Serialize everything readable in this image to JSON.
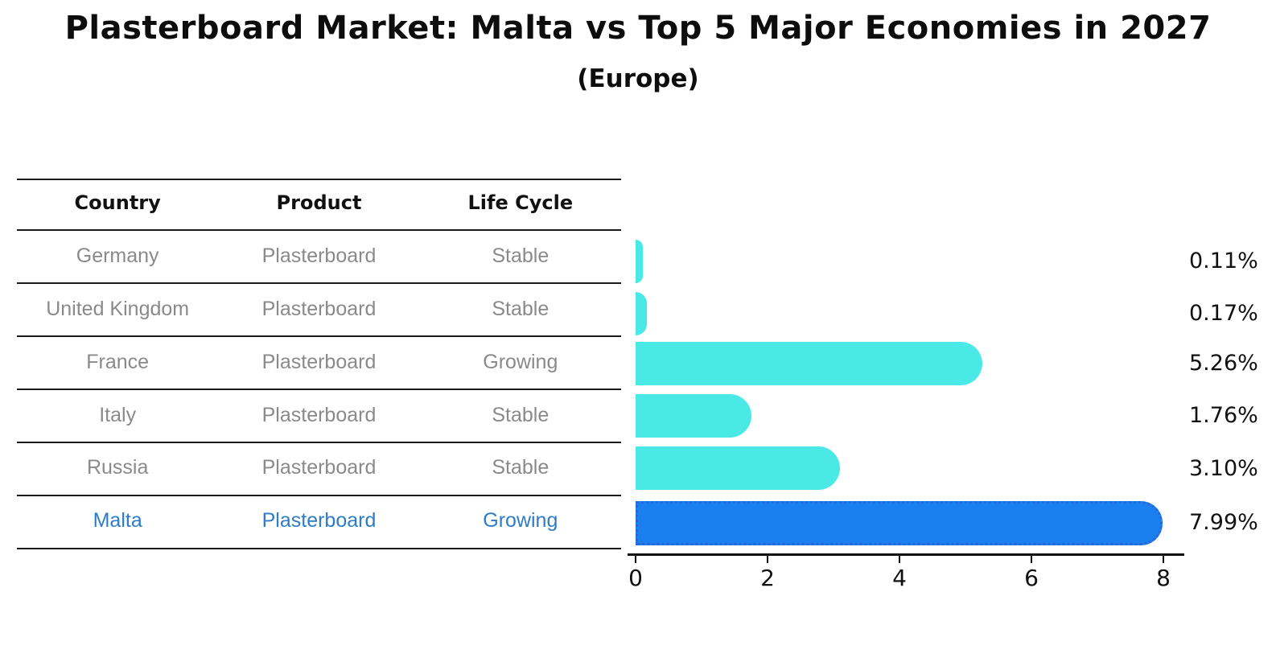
{
  "header": {
    "title": "Plasterboard Market: Malta vs Top 5 Major Economies in 2027",
    "subtitle": "(Europe)"
  },
  "table": {
    "headers": {
      "country": "Country",
      "product": "Product",
      "life_cycle": "Life Cycle"
    },
    "rows": [
      {
        "country": "Germany",
        "product": "Plasterboard",
        "life_cycle": "Stable"
      },
      {
        "country": "United Kingdom",
        "product": "Plasterboard",
        "life_cycle": "Stable"
      },
      {
        "country": "France",
        "product": "Plasterboard",
        "life_cycle": "Growing"
      },
      {
        "country": "Italy",
        "product": "Plasterboard",
        "life_cycle": "Stable"
      },
      {
        "country": "Russia",
        "product": "Plasterboard",
        "life_cycle": "Stable"
      },
      {
        "country": "Malta",
        "product": "Plasterboard",
        "life_cycle": "Growing"
      }
    ],
    "highlight_row": "Malta"
  },
  "chart_data": {
    "type": "bar",
    "orientation": "horizontal",
    "title": "Plasterboard Market: Malta vs Top 5 Major Economies in 2027",
    "subtitle": "(Europe)",
    "categories": [
      "Germany",
      "United Kingdom",
      "France",
      "Italy",
      "Russia",
      "Malta"
    ],
    "values": [
      0.11,
      0.17,
      5.26,
      1.76,
      3.1,
      7.99
    ],
    "value_labels": [
      "0.11%",
      "0.17%",
      "5.26%",
      "1.76%",
      "3.10%",
      "7.99%"
    ],
    "xlabel": "",
    "ylabel": "",
    "xlim": [
      0,
      8.4
    ],
    "xticks": [
      0,
      2,
      4,
      6,
      8
    ],
    "grid": false,
    "legend": false,
    "bar_color": "#4be9e6",
    "highlight_color": "#1a80f0",
    "highlight_border_color": "#2a66d9",
    "highlight_index": 5
  }
}
